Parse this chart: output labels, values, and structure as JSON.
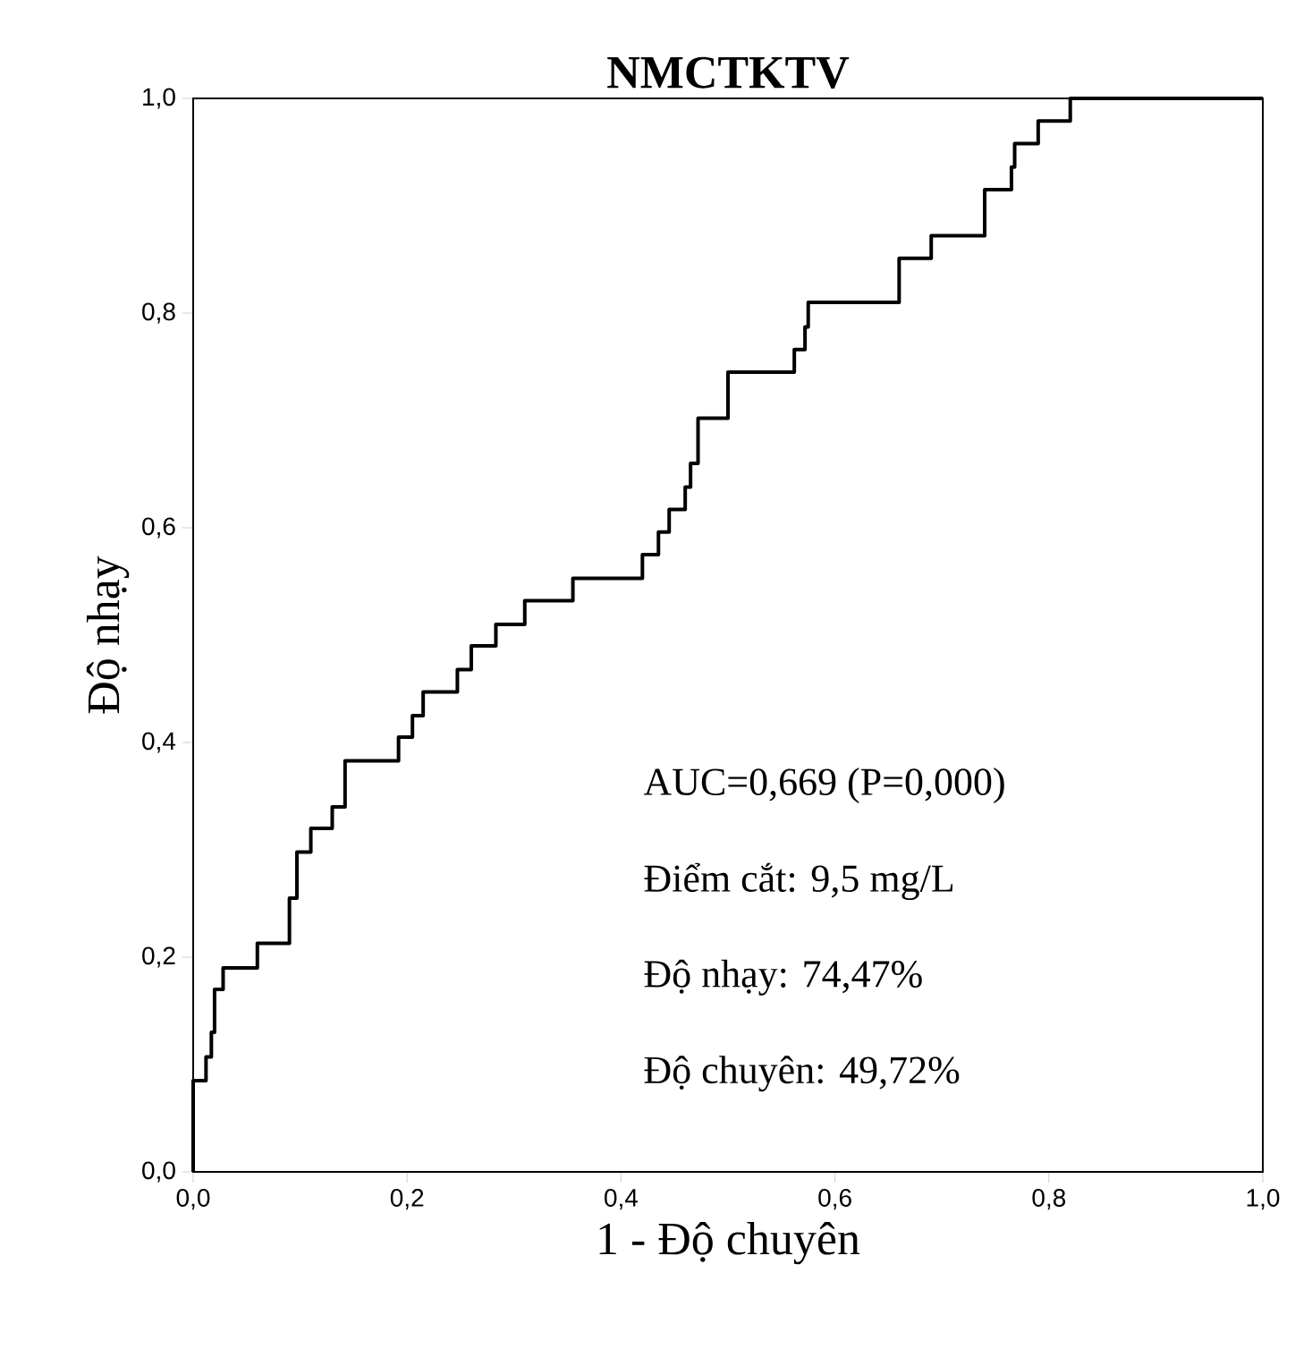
{
  "chart_data": {
    "type": "step",
    "title": "NMCTKTV",
    "xlabel": "1 - Độ chuyên",
    "ylabel": "Độ nhạy",
    "x": [
      0,
      0,
      0.012,
      0.017,
      0.02,
      0.028,
      0.06,
      0.09,
      0.097,
      0.11,
      0.13,
      0.142,
      0.192,
      0.205,
      0.215,
      0.247,
      0.26,
      0.283,
      0.31,
      0.355,
      0.42,
      0.435,
      0.445,
      0.46,
      0.465,
      0.472,
      0.5,
      0.562,
      0.572,
      0.575,
      0.66,
      0.69,
      0.74,
      0.765,
      0.768,
      0.79,
      0.82,
      1.0
    ],
    "series": [
      {
        "color": "#000000",
        "values": [
          0,
          0.085,
          0.107,
          0.13,
          0.17,
          0.19,
          0.213,
          0.255,
          0.298,
          0.32,
          0.34,
          0.383,
          0.405,
          0.425,
          0.447,
          0.468,
          0.49,
          0.51,
          0.532,
          0.553,
          0.575,
          0.596,
          0.617,
          0.638,
          0.66,
          0.702,
          0.745,
          0.766,
          0.787,
          0.81,
          0.851,
          0.872,
          0.915,
          0.936,
          0.958,
          0.979,
          1.0,
          1.0
        ]
      }
    ],
    "xlim": [
      0,
      1
    ],
    "ylim": [
      0,
      1
    ],
    "xticks": [
      {
        "value": 0,
        "label": "0,0"
      },
      {
        "value": 0.2,
        "label": "0,2"
      },
      {
        "value": 0.4,
        "label": "0,4"
      },
      {
        "value": 0.6,
        "label": "0,6"
      },
      {
        "value": 0.8,
        "label": "0,8"
      },
      {
        "value": 1,
        "label": "1,0"
      }
    ],
    "yticks": [
      {
        "value": 0,
        "label": "0,0"
      },
      {
        "value": 0.2,
        "label": "0,2"
      },
      {
        "value": 0.4,
        "label": "0,4"
      },
      {
        "value": 0.6,
        "label": "0,6"
      },
      {
        "value": 0.8,
        "label": "0,8"
      },
      {
        "value": 1,
        "label": "1,0"
      }
    ],
    "grid": false,
    "marker": "none",
    "line_style": "solid",
    "annotations": [
      "AUC=0,669 (P=0,000)",
      "Điểm cắt: 9,5 mg/L",
      "Độ nhạy: 74,47%",
      "Độ chuyên: 49,72%"
    ]
  }
}
